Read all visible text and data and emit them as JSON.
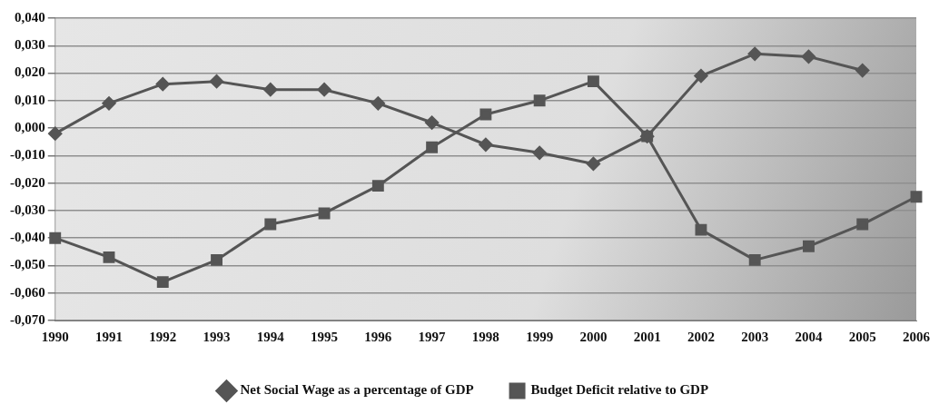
{
  "chart_data": {
    "type": "line",
    "categories": [
      "1990",
      "1991",
      "1992",
      "1993",
      "1994",
      "1995",
      "1996",
      "1997",
      "1998",
      "1999",
      "2000",
      "2001",
      "2002",
      "2003",
      "2004",
      "2005",
      "2006"
    ],
    "series": [
      {
        "name": "Net Social Wage as a percentage of GDP",
        "color": "#555555",
        "marker": "diamond",
        "values": [
          -0.002,
          0.009,
          0.016,
          0.017,
          0.014,
          0.014,
          0.009,
          0.002,
          -0.006,
          -0.009,
          -0.013,
          -0.003,
          0.019,
          0.027,
          0.026,
          0.021,
          null
        ]
      },
      {
        "name": "Budget Deficit relative to GDP",
        "color": "#555555",
        "marker": "square",
        "values": [
          -0.04,
          -0.047,
          -0.056,
          -0.048,
          -0.035,
          -0.031,
          -0.021,
          -0.007,
          0.005,
          0.01,
          0.017,
          -0.003,
          -0.037,
          -0.048,
          -0.043,
          -0.035,
          -0.025
        ]
      }
    ],
    "ylim": [
      -0.07,
      0.04
    ],
    "yticks": [
      {
        "value": 0.04,
        "label": "0,040"
      },
      {
        "value": 0.03,
        "label": "0,030"
      },
      {
        "value": 0.02,
        "label": "0,020"
      },
      {
        "value": 0.01,
        "label": "0,010"
      },
      {
        "value": 0,
        "label": "0,000"
      },
      {
        "value": -0.01,
        "label": "-0,010"
      },
      {
        "value": -0.02,
        "label": "-0,020"
      },
      {
        "value": -0.03,
        "label": "-0,030"
      },
      {
        "value": -0.04,
        "label": "-0,040"
      },
      {
        "value": -0.05,
        "label": "-0,050"
      },
      {
        "value": -0.06,
        "label": "-0,060"
      },
      {
        "value": -0.07,
        "label": "-0,070"
      }
    ],
    "grid": "y",
    "legend": "bottom"
  }
}
